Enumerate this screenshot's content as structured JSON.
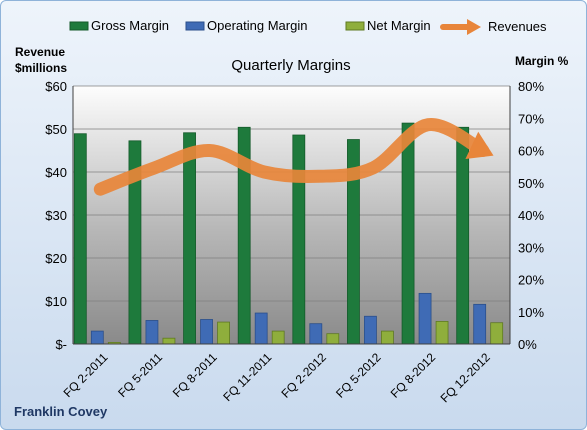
{
  "chart_data": {
    "type": "bar",
    "title": "Quarterly Margins",
    "footer": "Franklin Covey",
    "left_axis_title": [
      "Revenue",
      "$millions"
    ],
    "right_axis_title": "Margin %",
    "categories": [
      "FQ 2-2011",
      "FQ 5-2011",
      "FQ 8-2011",
      "FQ 11-2011",
      "FQ 2-2012",
      "FQ 5-2012",
      "FQ 8-2012",
      "FQ 12-2012"
    ],
    "left_ylim": [
      0,
      60
    ],
    "right_ylim": [
      0,
      80
    ],
    "left_ticks": [
      "$-",
      "$10",
      "$20",
      "$30",
      "$40",
      "$50",
      "$60"
    ],
    "right_ticks": [
      "0%",
      "10%",
      "20%",
      "30%",
      "40%",
      "50%",
      "60%",
      "70%",
      "80%"
    ],
    "legend_position": "top",
    "grid": true,
    "series": [
      {
        "name": "Gross Margin",
        "axis": "right",
        "color": "#1e7a3c",
        "values": [
          65.2,
          63.0,
          65.5,
          67.2,
          64.8,
          63.4,
          68.5,
          67.2
        ]
      },
      {
        "name": "Operating Margin",
        "axis": "right",
        "color": "#3f6bb5",
        "values": [
          4.0,
          7.3,
          7.6,
          9.6,
          6.3,
          8.6,
          15.7,
          12.3
        ]
      },
      {
        "name": "Net Margin",
        "axis": "right",
        "color": "#8fae3c",
        "values": [
          0.5,
          1.8,
          6.8,
          4.0,
          3.2,
          4.0,
          7.0,
          6.6
        ]
      },
      {
        "name": "Revenues",
        "axis": "left",
        "type": "line",
        "color": "#e8853a",
        "values": [
          36,
          41,
          45,
          40,
          39,
          41,
          51,
          45
        ]
      }
    ]
  }
}
